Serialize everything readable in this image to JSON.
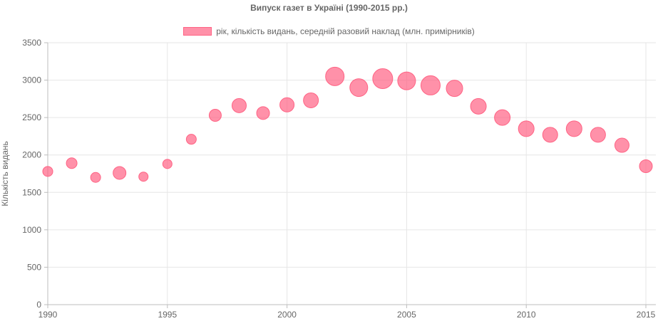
{
  "chart_data": {
    "type": "scatter",
    "variant": "bubble",
    "title": "Випуск газет в Україні (1990-2015 рр.)",
    "xlabel": "",
    "ylabel": "Кількість видань",
    "xlim": [
      1990,
      2015
    ],
    "ylim": [
      0,
      3500
    ],
    "x_ticks": [
      1990,
      1995,
      2000,
      2005,
      2010,
      2015
    ],
    "y_ticks": [
      0,
      500,
      1000,
      1500,
      2000,
      2500,
      3000,
      3500
    ],
    "grid": true,
    "legend_position": "top",
    "series": [
      {
        "name": "рік, кількість видань, середній разовий наклад (млн. примірників)",
        "color": "#ff6384",
        "fill": "rgba(255,99,132,0.7)",
        "points": [
          {
            "x": 1990,
            "y": 1780,
            "r": 7
          },
          {
            "x": 1991,
            "y": 1890,
            "r": 7.5
          },
          {
            "x": 1992,
            "y": 1700,
            "r": 7
          },
          {
            "x": 1993,
            "y": 1760,
            "r": 9
          },
          {
            "x": 1994,
            "y": 1710,
            "r": 6.5
          },
          {
            "x": 1995,
            "y": 1880,
            "r": 6.5
          },
          {
            "x": 1996,
            "y": 2210,
            "r": 7
          },
          {
            "x": 1997,
            "y": 2530,
            "r": 8.5
          },
          {
            "x": 1998,
            "y": 2660,
            "r": 10
          },
          {
            "x": 1999,
            "y": 2560,
            "r": 9
          },
          {
            "x": 2000,
            "y": 2670,
            "r": 10
          },
          {
            "x": 2001,
            "y": 2730,
            "r": 10.5
          },
          {
            "x": 2002,
            "y": 3050,
            "r": 13
          },
          {
            "x": 2003,
            "y": 2900,
            "r": 12.5
          },
          {
            "x": 2004,
            "y": 3020,
            "r": 14
          },
          {
            "x": 2005,
            "y": 2990,
            "r": 12.5
          },
          {
            "x": 2006,
            "y": 2930,
            "r": 13.5
          },
          {
            "x": 2007,
            "y": 2890,
            "r": 11.5
          },
          {
            "x": 2008,
            "y": 2650,
            "r": 11
          },
          {
            "x": 2009,
            "y": 2500,
            "r": 11
          },
          {
            "x": 2010,
            "y": 2350,
            "r": 11
          },
          {
            "x": 2011,
            "y": 2270,
            "r": 10.5
          },
          {
            "x": 2012,
            "y": 2350,
            "r": 11
          },
          {
            "x": 2013,
            "y": 2270,
            "r": 10.5
          },
          {
            "x": 2014,
            "y": 2130,
            "r": 10
          },
          {
            "x": 2015,
            "y": 1850,
            "r": 9
          }
        ]
      }
    ]
  }
}
